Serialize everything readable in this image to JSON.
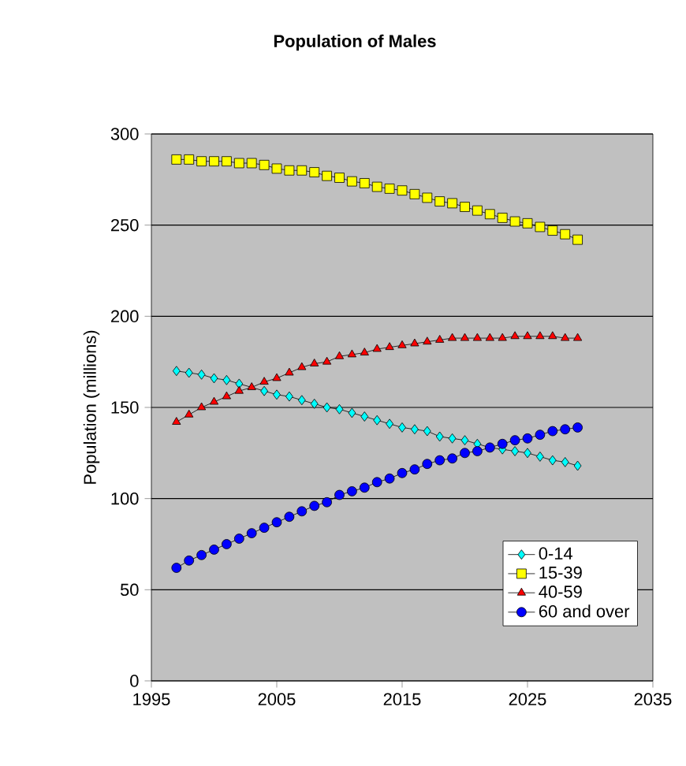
{
  "chart_data": {
    "type": "line",
    "title": "Population of Males",
    "ylabel": "Population (millions)",
    "x": [
      1997,
      1998,
      1999,
      2000,
      2001,
      2002,
      2003,
      2004,
      2005,
      2006,
      2007,
      2008,
      2009,
      2010,
      2011,
      2012,
      2013,
      2014,
      2015,
      2016,
      2017,
      2018,
      2019,
      2020,
      2021,
      2022,
      2023,
      2024,
      2025,
      2026,
      2027,
      2028,
      2029
    ],
    "series": [
      {
        "name": "0-14",
        "color": "#00ffff",
        "marker": "diamond",
        "values": [
          170,
          169,
          168,
          166,
          165,
          163,
          null,
          159,
          157,
          156,
          154,
          152,
          150,
          149,
          147,
          145,
          143,
          141,
          139,
          138,
          137,
          134,
          133,
          132,
          130,
          128,
          127,
          126,
          125,
          123,
          121,
          120,
          118
        ]
      },
      {
        "name": "15-39",
        "color": "#ffff00",
        "marker": "square",
        "values": [
          286,
          286,
          285,
          285,
          285,
          284,
          284,
          283,
          281,
          280,
          280,
          279,
          277,
          276,
          274,
          273,
          271,
          270,
          269,
          267,
          265,
          263,
          262,
          260,
          258,
          256,
          254,
          252,
          251,
          249,
          247,
          245,
          242
        ]
      },
      {
        "name": "40-59",
        "color": "#ff0000",
        "marker": "triangle",
        "values": [
          142,
          146,
          150,
          153,
          156,
          159,
          161,
          164,
          166,
          169,
          172,
          174,
          175,
          178,
          179,
          180,
          182,
          183,
          184,
          185,
          186,
          187,
          188,
          188,
          188,
          188,
          188,
          189,
          189,
          189,
          189,
          188,
          188
        ]
      },
      {
        "name": "60 and over",
        "color": "#0000ff",
        "marker": "circle",
        "values": [
          62,
          66,
          69,
          72,
          75,
          78,
          81,
          84,
          87,
          90,
          93,
          96,
          98,
          102,
          104,
          106,
          109,
          111,
          114,
          116,
          119,
          121,
          122,
          125,
          126,
          128,
          130,
          132,
          133,
          135,
          137,
          138,
          139
        ]
      }
    ],
    "xlim": [
      1995,
      2035
    ],
    "xticks": [
      1995,
      2005,
      2015,
      2025,
      2035
    ],
    "ylim": [
      0,
      300
    ],
    "yticks": [
      0,
      50,
      100,
      150,
      200,
      250,
      300
    ],
    "grid": "y",
    "legend": "bottom right"
  }
}
